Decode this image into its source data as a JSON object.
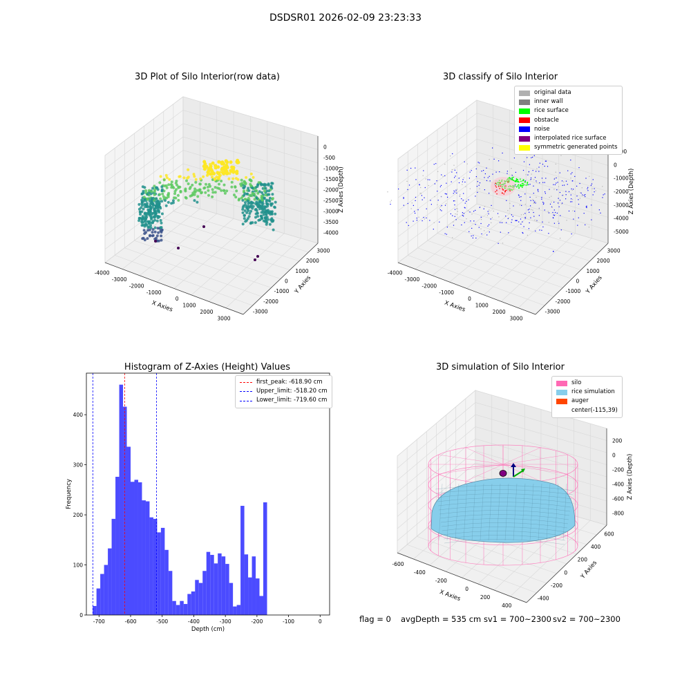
{
  "suptitle": "DSDSR01 2026-02-09 23:23:33",
  "footer": {
    "flag": "flag = 0",
    "avgDepth": "avgDepth = 535 cm",
    "sv1": "sv1 = 700~2300",
    "sv2": "sv2 = 700~2300"
  },
  "chart_data": [
    {
      "type": "scatter",
      "title": "3D Plot of Silo Interior(row data)",
      "xlabel": "X Axies",
      "ylabel": "Y Axies",
      "zlabel": "Z Axies (Depth)",
      "x_ticks": [
        "-4000",
        "-3000",
        "-2000",
        "-1000",
        "0",
        "1000",
        "2000",
        "3000"
      ],
      "y_ticks": [
        "-3000",
        "-2000",
        "-1000",
        "0",
        "1000",
        "2000",
        "3000"
      ],
      "z_ticks": [
        "0",
        "-500",
        "-1000",
        "-1500",
        "-2000",
        "-2500",
        "-3000",
        "-3500",
        "-4000"
      ],
      "colormap": [
        "#440154",
        "#3b528b",
        "#21918c",
        "#5ec962",
        "#fde725"
      ],
      "grid": true
    },
    {
      "type": "scatter",
      "title": "3D classify of Silo Interior",
      "xlabel": "X Axies",
      "ylabel": "Y Axies",
      "zlabel": "Z Axies (Depth)",
      "x_ticks": [
        "-4000",
        "-3000",
        "-2000",
        "-1000",
        "0",
        "1000",
        "2000",
        "3000"
      ],
      "y_ticks": [
        "-3000",
        "-2000",
        "-1000",
        "0",
        "1000",
        "2000",
        "3000"
      ],
      "z_ticks": [
        "1000",
        "0",
        "-1000",
        "-2000",
        "-3000",
        "-4000",
        "-5000"
      ],
      "legend": [
        {
          "label": "original data",
          "color": "#b0b0b0"
        },
        {
          "label": "inner wall",
          "color": "#808080"
        },
        {
          "label": "rice surface",
          "color": "#00ff00"
        },
        {
          "label": "obstacle",
          "color": "#ff0000"
        },
        {
          "label": "noise",
          "color": "#0000ff"
        },
        {
          "label": "interpolated rice surface",
          "color": "#800080"
        },
        {
          "label": "symmetric generated points",
          "color": "#ffff00"
        }
      ],
      "grid": true
    },
    {
      "type": "bar",
      "title": "Histogram of Z-Axies (Height) Values",
      "xlabel": "Depth (cm)",
      "ylabel": "Frequency",
      "xlim": [
        -740,
        30
      ],
      "ylim": [
        0,
        483
      ],
      "x_ticks": [
        "-700",
        "-600",
        "-500",
        "-400",
        "-300",
        "-200",
        "-100",
        "0"
      ],
      "y_ticks": [
        "0",
        "100",
        "200",
        "300",
        "400"
      ],
      "bar_color": "#4b4bff",
      "bin_width": 12,
      "bin_start": -720,
      "values": [
        18,
        53,
        82,
        100,
        133,
        192,
        276,
        460,
        416,
        336,
        266,
        270,
        265,
        229,
        227,
        195,
        192,
        165,
        174,
        130,
        88,
        28,
        20,
        28,
        22,
        42,
        47,
        70,
        64,
        88,
        126,
        120,
        103,
        123,
        117,
        102,
        64,
        17,
        20,
        218,
        121,
        75,
        117,
        73,
        38,
        225
      ],
      "vlines": [
        {
          "label": "first_peak: -618.90 cm",
          "x": -618.9,
          "color": "#ff0000"
        },
        {
          "label": "Upper_limit: -518.20 cm",
          "x": -518.2,
          "color": "#0000ff"
        },
        {
          "label": "Lower_limit: -719.60 cm",
          "x": -719.6,
          "color": "#0000ff"
        }
      ],
      "legend_position": "upper right",
      "grid": false
    },
    {
      "type": "surface",
      "title": "3D simulation of Silo Interior",
      "xlabel": "X Axies",
      "ylabel": "Y Axies",
      "zlabel": "Z Axies (Depth)",
      "x_ticks": [
        "-600",
        "-400",
        "-200",
        "0",
        "200",
        "400"
      ],
      "y_ticks": [
        "-400",
        "-200",
        "0",
        "200",
        "400",
        "600"
      ],
      "z_ticks": [
        "200",
        "0",
        "-200",
        "-400",
        "-600",
        "-800"
      ],
      "legend": [
        {
          "label": "silo",
          "color": "#ff69b4"
        },
        {
          "label": "rice simulation",
          "color": "#87ceeb"
        },
        {
          "label": "auger",
          "color": "#ff4500"
        },
        {
          "label": "center(-115,39)",
          "color": ""
        }
      ],
      "grid": true
    }
  ]
}
